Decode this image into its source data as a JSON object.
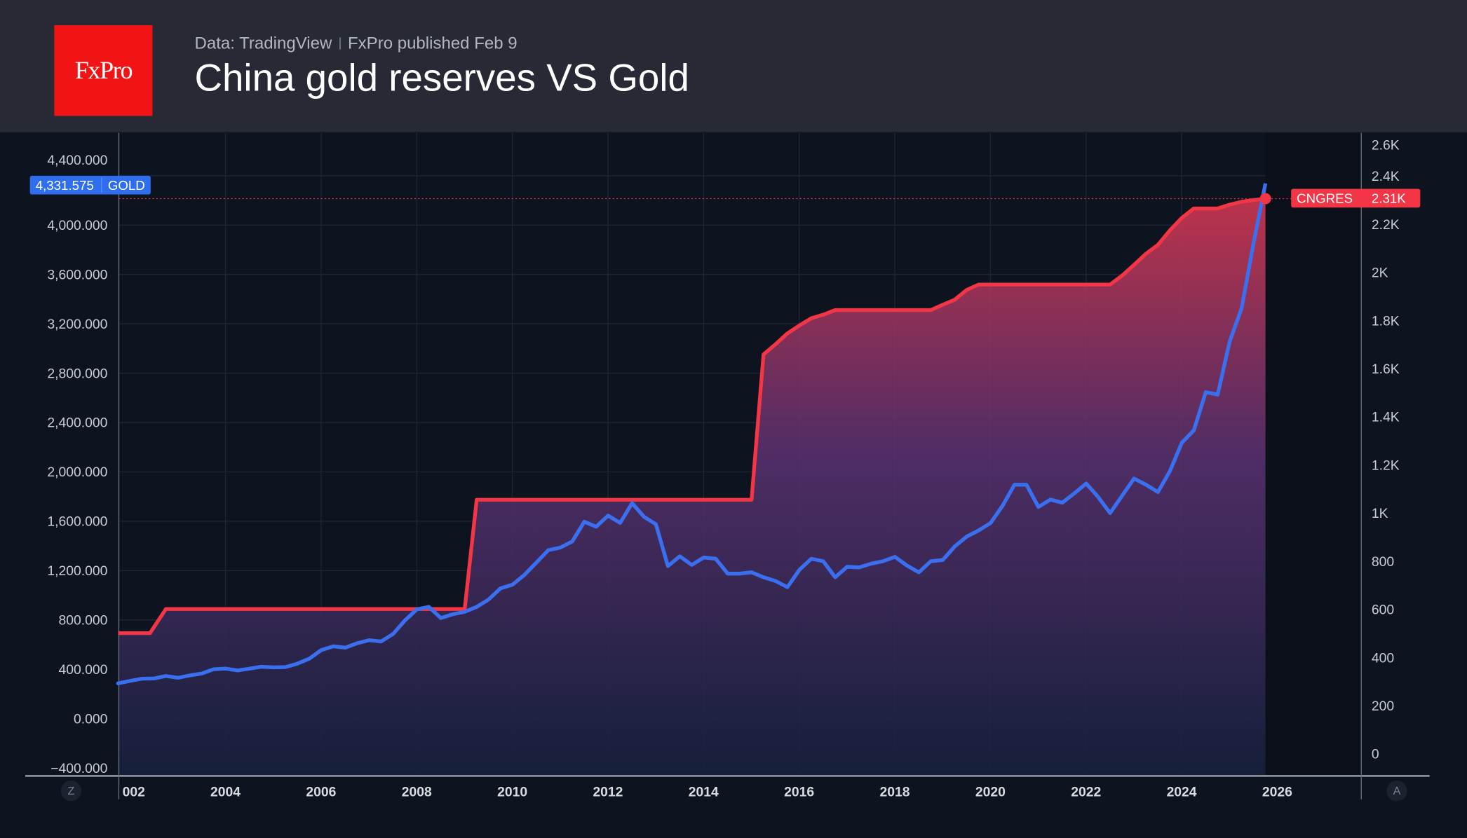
{
  "header": {
    "logo_text": "FxPro",
    "source": "Data: TradingView",
    "published": "FxPro published Feb 9",
    "title": "China gold reserves VS Gold"
  },
  "controls": {
    "left_button": "Z",
    "right_button": "A"
  },
  "colors": {
    "gold": "#3a6ff0",
    "cngres": "#f23645",
    "background": "#0d131f",
    "header": "#272a35",
    "logo": "#f21414"
  },
  "chart_data": {
    "type": "line",
    "title": "China gold reserves VS Gold",
    "grid": true,
    "x_ticks": [
      "002",
      "2004",
      "2006",
      "2008",
      "2010",
      "2012",
      "2014",
      "2016",
      "2018",
      "2020",
      "2022",
      "2024",
      "2026"
    ],
    "left_axis": {
      "ticks": [
        "4,400.000",
        "4,000.000",
        "3,600.000",
        "3,200.000",
        "2,800.000",
        "2,400.000",
        "2,000.000",
        "1,600.000",
        "1,200.000",
        "800.000",
        "400.000",
        "0.000",
        "−400.000"
      ],
      "range": [
        -400,
        4600
      ]
    },
    "right_axis": {
      "ticks": [
        "2.6K",
        "2.4K",
        "2.2K",
        "2K",
        "1.8K",
        "1.6K",
        "1.4K",
        "1.2K",
        "1K",
        "800",
        "600",
        "400",
        "200",
        "0"
      ],
      "range": [
        0,
        2600
      ]
    },
    "series": [
      {
        "name": "GOLD",
        "axis": "left",
        "last_label": "4,331.575",
        "points": [
          [
            "2001-10",
            280
          ],
          [
            "2002-01",
            300
          ],
          [
            "2002-04",
            318
          ],
          [
            "2002-07",
            320
          ],
          [
            "2002-10",
            340
          ],
          [
            "2003-01",
            325
          ],
          [
            "2003-04",
            345
          ],
          [
            "2003-07",
            360
          ],
          [
            "2003-10",
            395
          ],
          [
            "2004-01",
            400
          ],
          [
            "2004-04",
            385
          ],
          [
            "2004-07",
            400
          ],
          [
            "2004-10",
            415
          ],
          [
            "2005-01",
            410
          ],
          [
            "2005-04",
            412
          ],
          [
            "2005-07",
            440
          ],
          [
            "2005-10",
            480
          ],
          [
            "2006-01",
            550
          ],
          [
            "2006-04",
            580
          ],
          [
            "2006-07",
            570
          ],
          [
            "2006-10",
            605
          ],
          [
            "2007-01",
            630
          ],
          [
            "2007-04",
            620
          ],
          [
            "2007-07",
            680
          ],
          [
            "2007-10",
            790
          ],
          [
            "2008-01",
            880
          ],
          [
            "2008-04",
            900
          ],
          [
            "2008-07",
            810
          ],
          [
            "2008-10",
            840
          ],
          [
            "2009-01",
            860
          ],
          [
            "2009-04",
            900
          ],
          [
            "2009-07",
            960
          ],
          [
            "2009-10",
            1050
          ],
          [
            "2010-01",
            1080
          ],
          [
            "2010-04",
            1160
          ],
          [
            "2010-07",
            1260
          ],
          [
            "2010-10",
            1360
          ],
          [
            "2011-01",
            1380
          ],
          [
            "2011-04",
            1430
          ],
          [
            "2011-07",
            1590
          ],
          [
            "2011-10",
            1550
          ],
          [
            "2012-01",
            1640
          ],
          [
            "2012-04",
            1580
          ],
          [
            "2012-07",
            1740
          ],
          [
            "2012-10",
            1630
          ],
          [
            "2013-01",
            1570
          ],
          [
            "2013-04",
            1230
          ],
          [
            "2013-07",
            1310
          ],
          [
            "2013-10",
            1240
          ],
          [
            "2014-01",
            1300
          ],
          [
            "2014-04",
            1290
          ],
          [
            "2014-07",
            1170
          ],
          [
            "2014-10",
            1170
          ],
          [
            "2015-01",
            1180
          ],
          [
            "2015-04",
            1140
          ],
          [
            "2015-07",
            1110
          ],
          [
            "2015-10",
            1060
          ],
          [
            "2016-01",
            1200
          ],
          [
            "2016-04",
            1290
          ],
          [
            "2016-07",
            1270
          ],
          [
            "2016-10",
            1140
          ],
          [
            "2017-01",
            1225
          ],
          [
            "2017-04",
            1220
          ],
          [
            "2017-07",
            1250
          ],
          [
            "2017-10",
            1270
          ],
          [
            "2018-01",
            1305
          ],
          [
            "2018-04",
            1235
          ],
          [
            "2018-07",
            1180
          ],
          [
            "2018-10",
            1270
          ],
          [
            "2019-01",
            1280
          ],
          [
            "2019-04",
            1390
          ],
          [
            "2019-07",
            1470
          ],
          [
            "2019-10",
            1520
          ],
          [
            "2020-01",
            1580
          ],
          [
            "2020-04",
            1720
          ],
          [
            "2020-07",
            1890
          ],
          [
            "2020-10",
            1890
          ],
          [
            "2021-01",
            1710
          ],
          [
            "2021-04",
            1770
          ],
          [
            "2021-07",
            1745
          ],
          [
            "2021-10",
            1820
          ],
          [
            "2022-01",
            1900
          ],
          [
            "2022-04",
            1790
          ],
          [
            "2022-07",
            1660
          ],
          [
            "2022-10",
            1800
          ],
          [
            "2023-01",
            1940
          ],
          [
            "2023-04",
            1890
          ],
          [
            "2023-07",
            1830
          ],
          [
            "2023-10",
            2000
          ],
          [
            "2024-01",
            2230
          ],
          [
            "2024-04",
            2330
          ],
          [
            "2024-07",
            2640
          ],
          [
            "2024-10",
            2620
          ],
          [
            "2025-01",
            3050
          ],
          [
            "2025-04",
            3320
          ],
          [
            "2025-07",
            3850
          ],
          [
            "2025-10",
            4331.575
          ]
        ]
      },
      {
        "name": "CNGRES",
        "axis": "right",
        "last_label": "2.31K",
        "points": [
          [
            "2001-10",
            500
          ],
          [
            "2002-06",
            500
          ],
          [
            "2002-10",
            600
          ],
          [
            "2009-01",
            600
          ],
          [
            "2009-04",
            1054
          ],
          [
            "2015-01",
            1054
          ],
          [
            "2015-04",
            1658
          ],
          [
            "2015-07",
            1700
          ],
          [
            "2015-10",
            1745
          ],
          [
            "2016-01",
            1778
          ],
          [
            "2016-04",
            1808
          ],
          [
            "2016-07",
            1823
          ],
          [
            "2016-10",
            1842
          ],
          [
            "2018-10",
            1842
          ],
          [
            "2019-01",
            1864
          ],
          [
            "2019-04",
            1885
          ],
          [
            "2019-07",
            1926
          ],
          [
            "2019-10",
            1948
          ],
          [
            "2022-07",
            1948
          ],
          [
            "2022-10",
            1985
          ],
          [
            "2023-01",
            2030
          ],
          [
            "2023-04",
            2076
          ],
          [
            "2023-07",
            2113
          ],
          [
            "2023-10",
            2173
          ],
          [
            "2024-01",
            2225
          ],
          [
            "2024-04",
            2264
          ],
          [
            "2024-10",
            2264
          ],
          [
            "2025-01",
            2280
          ],
          [
            "2025-04",
            2292
          ],
          [
            "2025-07",
            2299
          ],
          [
            "2025-10",
            2305
          ]
        ]
      }
    ]
  }
}
